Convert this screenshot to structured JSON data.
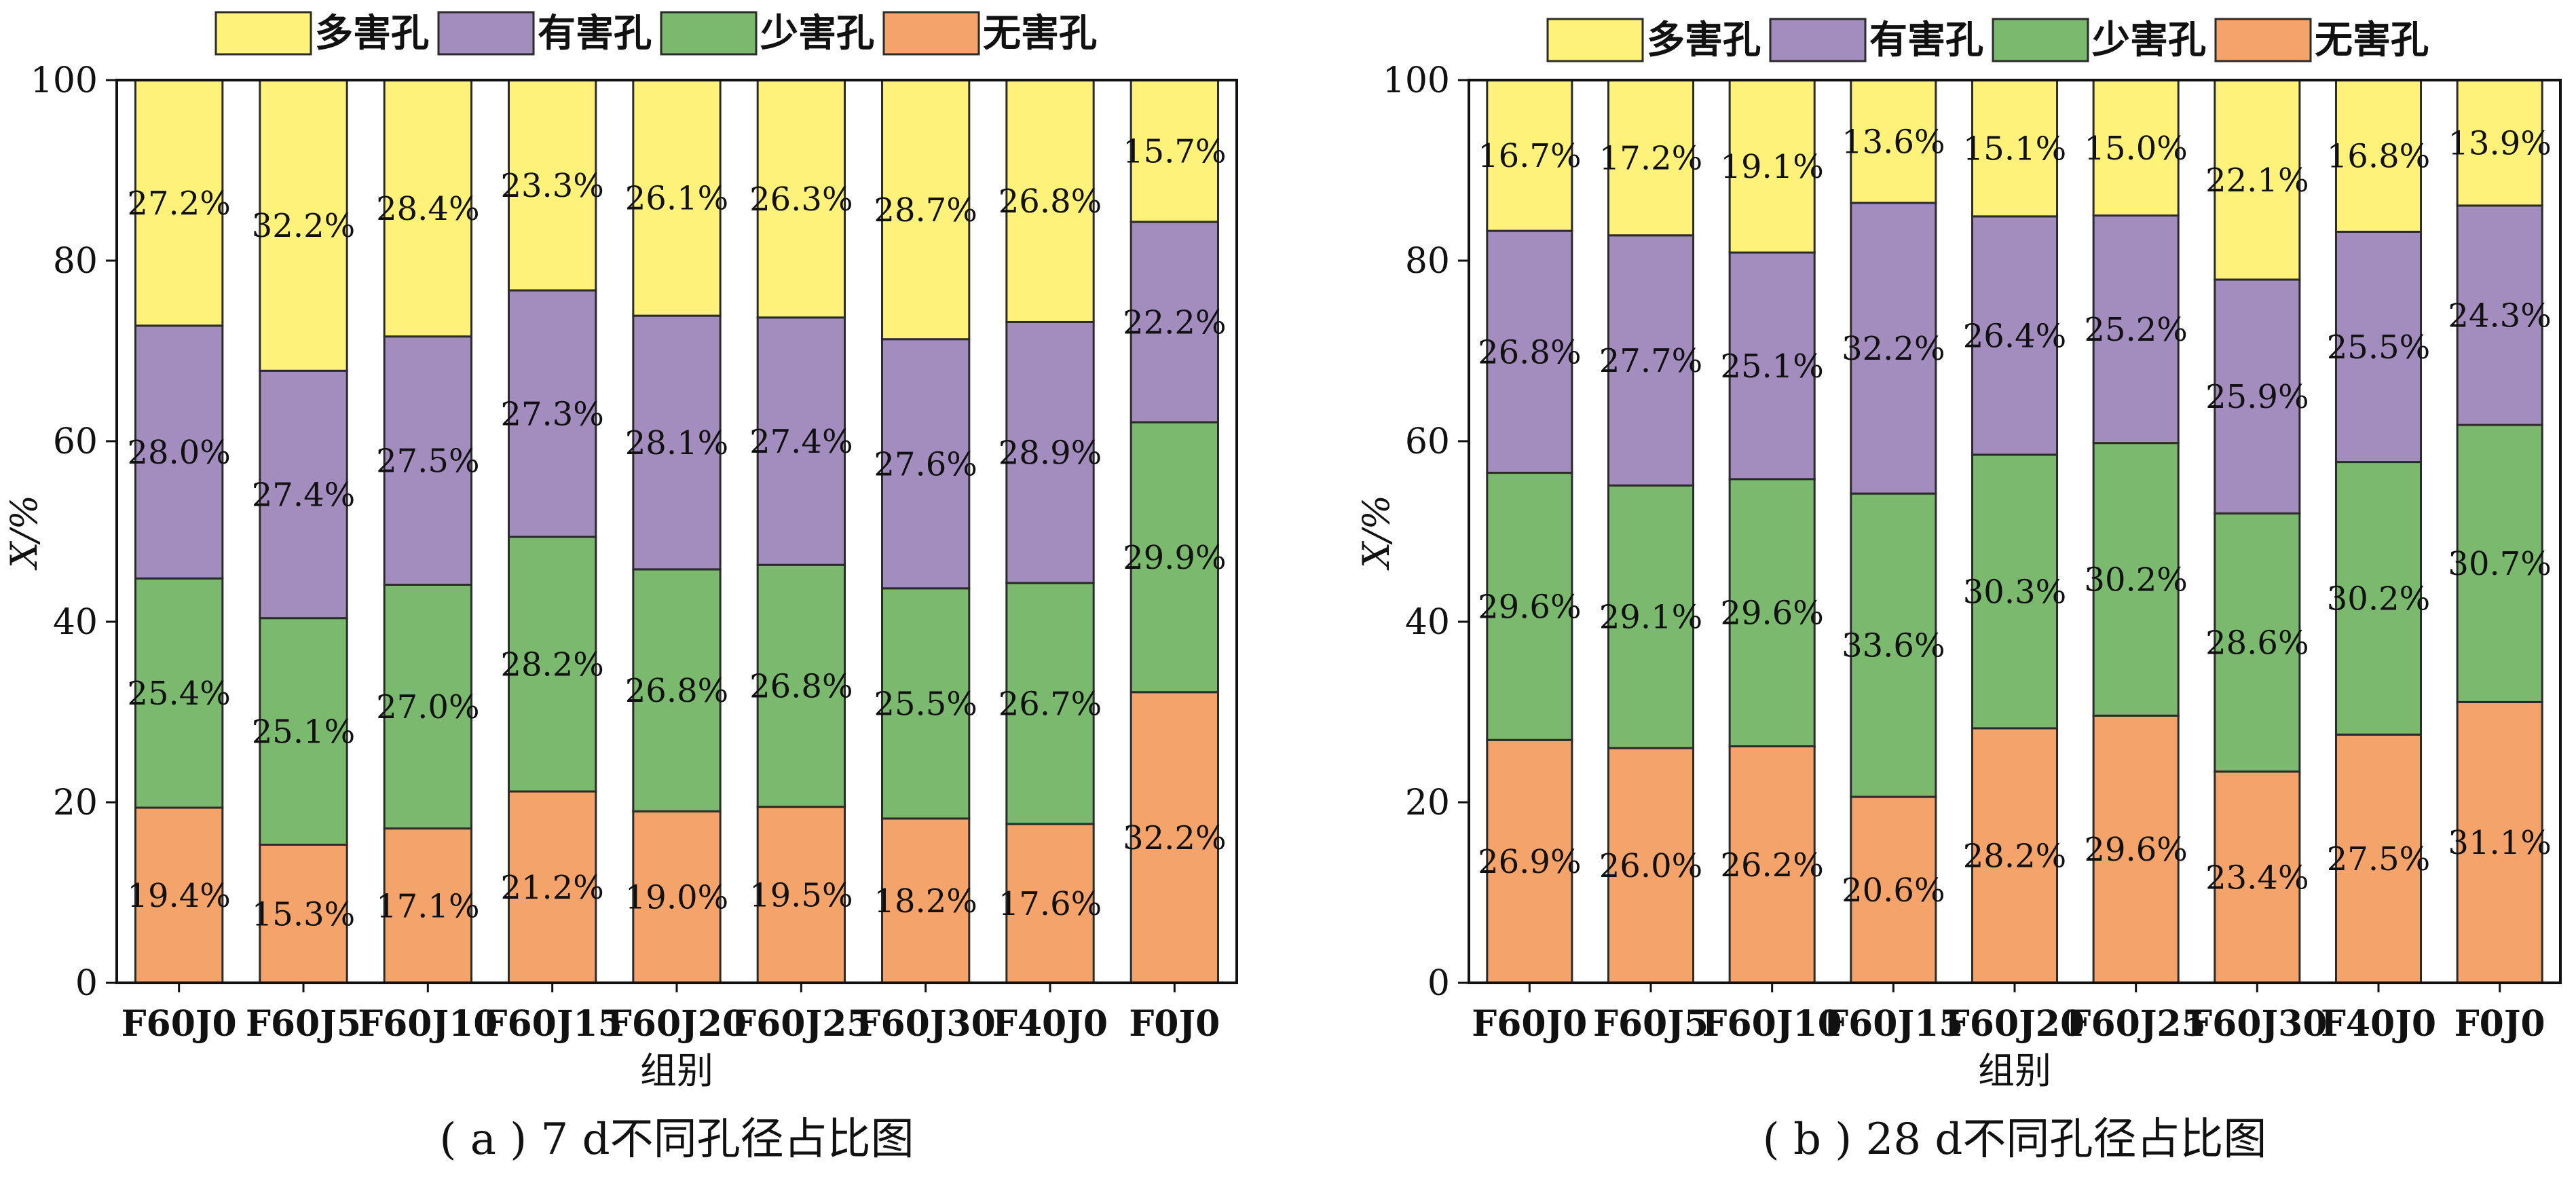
{
  "legend": [
    {
      "label": "多害孔",
      "color": "#FFF27A"
    },
    {
      "label": "有害孔",
      "color": "#A38DBE"
    },
    {
      "label": "少害孔",
      "color": "#7BBA6E"
    },
    {
      "label": "无害孔",
      "color": "#F4A46A"
    }
  ],
  "chart_data": [
    {
      "type": "bar",
      "stacked": true,
      "caption": "( a ) 7 d不同孔径占比图",
      "xlabel": "组别",
      "ylabel": "X/%",
      "ylim": [
        0,
        100
      ],
      "yticks": [
        0,
        20,
        40,
        60,
        80,
        100
      ],
      "categories": [
        "F60J0",
        "F60J5",
        "F60J10",
        "F60J15",
        "F60J20",
        "F60J25",
        "F60J30",
        "F40J0",
        "F0J0"
      ],
      "series": [
        {
          "name": "无害孔",
          "color": "#F4A46A",
          "values": [
            19.4,
            15.3,
            17.1,
            21.2,
            19.0,
            19.5,
            18.2,
            17.6,
            32.2
          ],
          "labels": [
            "19.4%",
            "15.3%",
            "17.1%",
            "21.2%",
            "19.0%",
            "19.5%",
            "18.2%",
            "17.6%",
            "32.2%"
          ]
        },
        {
          "name": "少害孔",
          "color": "#7BBA6E",
          "values": [
            25.4,
            25.1,
            27.0,
            28.2,
            26.8,
            26.8,
            25.5,
            26.7,
            29.9
          ],
          "labels": [
            "25.4%",
            "25.1%",
            "27.0%",
            "28.2%",
            "26.8%",
            "26.8%",
            "25.5%",
            "26.7%",
            "29.9%"
          ]
        },
        {
          "name": "有害孔",
          "color": "#A38DBE",
          "values": [
            28.0,
            27.4,
            27.5,
            27.3,
            28.1,
            27.4,
            27.6,
            28.9,
            22.2
          ],
          "labels": [
            "28.0%",
            "27.4%",
            "27.5%",
            "27.3%",
            "28.1%",
            "27.4%",
            "27.6%",
            "28.9%",
            "22.2%"
          ]
        },
        {
          "name": "多害孔",
          "color": "#FFF27A",
          "values": [
            27.2,
            32.2,
            28.4,
            23.3,
            26.1,
            26.3,
            28.7,
            26.8,
            15.7
          ],
          "labels": [
            "27.2%",
            "32.2%",
            "28.4%",
            "23.3%",
            "26.1%",
            "26.3%",
            "28.7%",
            "26.8%",
            "15.7%"
          ]
        }
      ]
    },
    {
      "type": "bar",
      "stacked": true,
      "caption": "( b ) 28 d不同孔径占比图",
      "xlabel": "组别",
      "ylabel": "X/%",
      "ylim": [
        0,
        100
      ],
      "yticks": [
        0,
        20,
        40,
        60,
        80,
        100
      ],
      "categories": [
        "F60J0",
        "F60J5",
        "F60J10",
        "F60J15",
        "F60J20",
        "F60J25",
        "F60J30",
        "F40J0",
        "F0J0"
      ],
      "series": [
        {
          "name": "无害孔",
          "color": "#F4A46A",
          "values": [
            26.9,
            26.0,
            26.2,
            20.6,
            28.2,
            29.6,
            23.4,
            27.5,
            31.1
          ],
          "labels": [
            "26.9%",
            "26.0%",
            "26.2%",
            "20.6%",
            "28.2%",
            "29.6%",
            "23.4%",
            "27.5%",
            "31.1%"
          ]
        },
        {
          "name": "少害孔",
          "color": "#7BBA6E",
          "values": [
            29.6,
            29.1,
            29.6,
            33.6,
            30.3,
            30.2,
            28.6,
            30.2,
            30.7
          ],
          "labels": [
            "29.6%",
            "29.1%",
            "29.6%",
            "33.6%",
            "30.3%",
            "30.2%",
            "28.6%",
            "30.2%",
            "30.7%"
          ]
        },
        {
          "name": "有害孔",
          "color": "#A38DBE",
          "values": [
            26.8,
            27.7,
            25.1,
            32.2,
            26.4,
            25.2,
            25.9,
            25.5,
            24.3
          ],
          "labels": [
            "26.8%",
            "27.7%",
            "25.1%",
            "32.2%",
            "26.4%",
            "25.2%",
            "25.9%",
            "25.5%",
            "24.3%"
          ]
        },
        {
          "name": "多害孔",
          "color": "#FFF27A",
          "values": [
            16.7,
            17.2,
            19.1,
            13.6,
            15.1,
            15.0,
            22.1,
            16.8,
            13.9
          ],
          "labels": [
            "16.7%",
            "17.2%",
            "19.1%",
            "13.6%",
            "15.1%",
            "15.0%",
            "22.1%",
            "16.8%",
            "13.9%"
          ]
        }
      ]
    }
  ]
}
